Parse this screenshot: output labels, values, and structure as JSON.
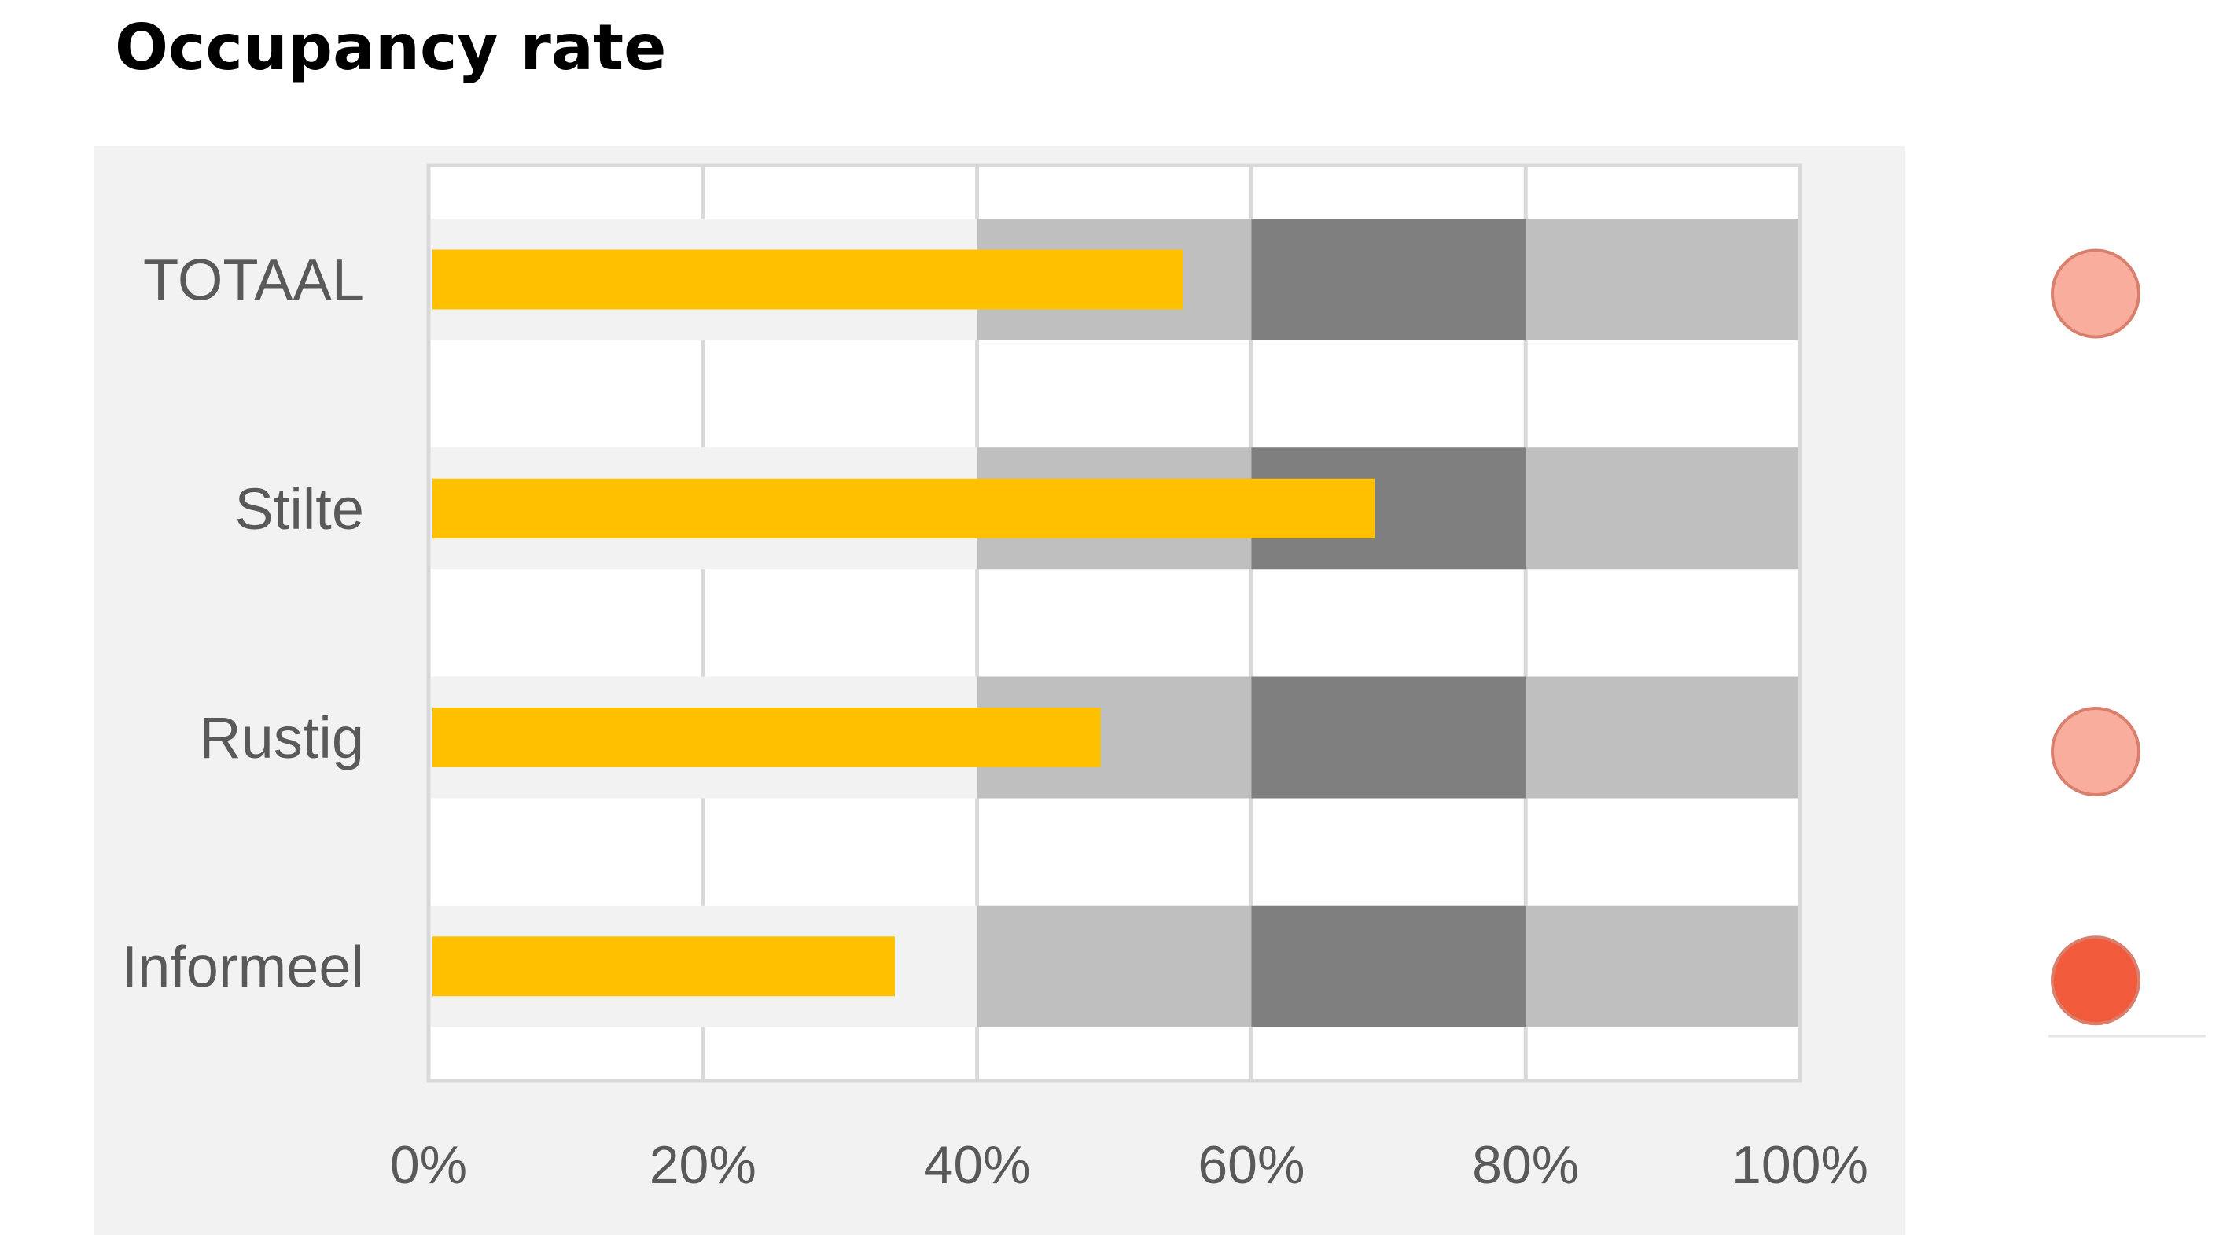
{
  "chart_data": {
    "type": "bar",
    "orientation": "horizontal",
    "title": "Occupancy rate",
    "categories": [
      "TOTAAL",
      "Stilte",
      "Rustig",
      "Informeel"
    ],
    "series": [
      {
        "values": [
          55,
          69,
          49,
          34
        ],
        "color": "#ffc000"
      }
    ],
    "bands": [
      {
        "from": 40,
        "to": 60,
        "color": "#bfbfbf"
      },
      {
        "from": 60,
        "to": 80,
        "color": "#7f7f7f"
      },
      {
        "from": 80,
        "to": 100,
        "color": "#bfbfbf"
      }
    ],
    "status_indicators": [
      {
        "category": "TOTAAL",
        "color": "#f8ad9d"
      },
      {
        "category": "Stilte",
        "color": null
      },
      {
        "category": "Rustig",
        "color": "#f8ad9d"
      },
      {
        "category": "Informeel",
        "color": "#f15a3a"
      }
    ],
    "xlim": [
      0,
      100
    ],
    "xticks": [
      0,
      20,
      40,
      60,
      80,
      100
    ],
    "xtick_labels": [
      "0%",
      "20%",
      "40%",
      "60%",
      "80%",
      "100%"
    ],
    "grid": true,
    "legend": "none",
    "xlabel": "",
    "ylabel": ""
  }
}
